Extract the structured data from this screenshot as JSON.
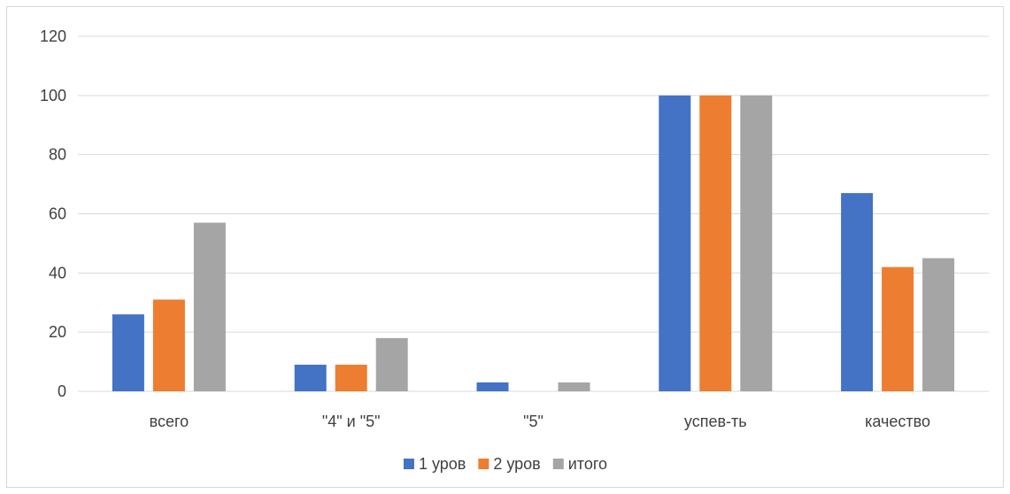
{
  "chart_data": {
    "type": "bar",
    "categories": [
      "всего",
      "\"4\" и \"5\"",
      "\"5\"",
      "успев-ть",
      "качество"
    ],
    "series": [
      {
        "name": "1 уров",
        "color": "#4472c4",
        "values": [
          26,
          9,
          3,
          100,
          67
        ]
      },
      {
        "name": "2 уров",
        "color": "#ed7d31",
        "values": [
          31,
          9,
          0,
          100,
          42
        ]
      },
      {
        "name": "итого",
        "color": "#a5a5a5",
        "values": [
          57,
          18,
          3,
          100,
          45
        ]
      }
    ],
    "ylim": [
      0,
      120
    ],
    "yticks": [
      "0",
      "20",
      "40",
      "60",
      "80",
      "100",
      "120"
    ],
    "grid": true,
    "legend_position": "bottom"
  }
}
